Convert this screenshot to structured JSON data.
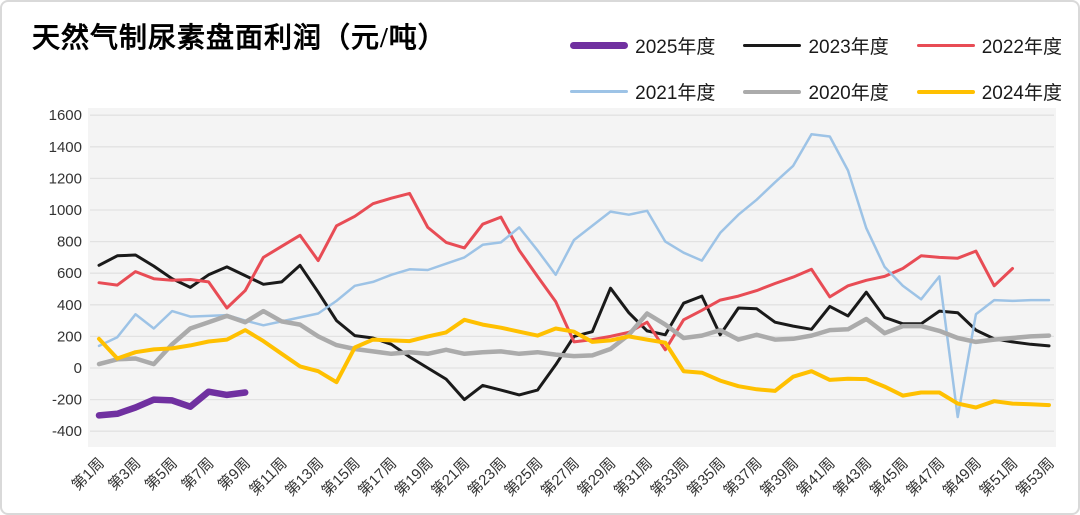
{
  "title": "天然气制尿素盘面利润（元/吨）",
  "legend": {
    "rows": [
      [
        {
          "label": "2025年度",
          "color": "#7030A0",
          "line_weight": 7
        },
        {
          "label": "2023年度",
          "color": "#1A1A1A",
          "line_weight": 3
        },
        {
          "label": "2022年度",
          "color": "#E84C55",
          "line_weight": 3
        }
      ],
      [
        {
          "label": "2021年度",
          "color": "#9DC3E6",
          "line_weight": 3
        },
        {
          "label": "2020年度",
          "color": "#ABABAB",
          "line_weight": 4
        },
        {
          "label": "2024年度",
          "color": "#FFC000",
          "line_weight": 4
        }
      ]
    ]
  },
  "chart_data": {
    "type": "line",
    "title": "天然气制尿素盘面利润（元/吨）",
    "x_axis": {
      "unit": "week",
      "range": [
        1,
        53
      ],
      "tick_step": 2,
      "tick_labels": [
        "第1周",
        "第3周",
        "第5周",
        "第7周",
        "第9周",
        "第11周",
        "第13周",
        "第15周",
        "第17周",
        "第19周",
        "第21周",
        "第23周",
        "第25周",
        "第27周",
        "第29周",
        "第31周",
        "第33周",
        "第35周",
        "第37周",
        "第39周",
        "第41周",
        "第43周",
        "第45周",
        "第47周",
        "第49周",
        "第51周",
        "第53周"
      ]
    },
    "y_axis": {
      "min": -400,
      "max": 1600,
      "step": 200,
      "ticks": [
        1600,
        1400,
        1200,
        1000,
        800,
        600,
        400,
        200,
        0,
        -200,
        -400
      ]
    },
    "grid": true,
    "plot_bg": "#F4F4F4",
    "grid_color": "#E2E2E2",
    "legend_position": "top-right",
    "series": [
      {
        "name": "2025年度",
        "color": "#7030A0",
        "width": 6.5,
        "start_week": 1,
        "values": [
          -300,
          -290,
          -250,
          -200,
          -205,
          -245,
          -150,
          -170,
          -155
        ]
      },
      {
        "name": "2023年度",
        "color": "#1A1A1A",
        "width": 3,
        "start_week": 1,
        "values": [
          650,
          710,
          715,
          645,
          565,
          510,
          590,
          640,
          585,
          530,
          545,
          650,
          480,
          300,
          205,
          190,
          150,
          70,
          0,
          -70,
          -200,
          -110,
          -140,
          -170,
          -140,
          20,
          200,
          230,
          505,
          350,
          235,
          210,
          410,
          455,
          210,
          380,
          375,
          290,
          265,
          245,
          390,
          330,
          480,
          320,
          280,
          280,
          360,
          350,
          240,
          185,
          165,
          150,
          140
        ]
      },
      {
        "name": "2022年度",
        "color": "#E84C55",
        "width": 3,
        "start_week": 1,
        "values": [
          540,
          525,
          610,
          565,
          555,
          560,
          545,
          380,
          490,
          700,
          770,
          840,
          680,
          900,
          960,
          1040,
          1075,
          1105,
          890,
          795,
          760,
          910,
          955,
          745,
          580,
          420,
          165,
          180,
          200,
          225,
          290,
          115,
          305,
          365,
          430,
          455,
          490,
          535,
          575,
          625,
          450,
          520,
          555,
          580,
          630,
          710,
          700,
          695,
          740,
          520,
          630
        ]
      },
      {
        "name": "2021年度",
        "color": "#9DC3E6",
        "width": 2.5,
        "start_week": 1,
        "values": [
          140,
          195,
          340,
          250,
          360,
          325,
          330,
          335,
          300,
          270,
          295,
          320,
          345,
          425,
          520,
          545,
          590,
          625,
          620,
          660,
          700,
          780,
          795,
          890,
          745,
          590,
          810,
          900,
          990,
          970,
          995,
          800,
          730,
          680,
          855,
          970,
          1065,
          1175,
          1280,
          1480,
          1465,
          1250,
          885,
          640,
          520,
          435,
          580,
          -310,
          340,
          430,
          425,
          430,
          430
        ]
      },
      {
        "name": "2020年度",
        "color": "#ABABAB",
        "width": 4.5,
        "start_week": 1,
        "values": [
          25,
          55,
          60,
          25,
          150,
          250,
          290,
          330,
          290,
          360,
          295,
          275,
          200,
          145,
          120,
          105,
          90,
          100,
          90,
          115,
          90,
          100,
          105,
          90,
          100,
          85,
          75,
          80,
          120,
          210,
          345,
          275,
          190,
          205,
          240,
          180,
          210,
          180,
          185,
          205,
          240,
          245,
          310,
          220,
          265,
          265,
          235,
          190,
          165,
          180,
          190,
          200,
          205
        ]
      },
      {
        "name": "2024年度",
        "color": "#FFC000",
        "width": 4,
        "start_week": 1,
        "values": [
          185,
          60,
          100,
          118,
          124,
          143,
          168,
          180,
          240,
          170,
          90,
          10,
          -20,
          -90,
          130,
          180,
          175,
          170,
          200,
          225,
          305,
          275,
          255,
          230,
          205,
          250,
          230,
          165,
          175,
          200,
          180,
          160,
          -20,
          -30,
          -80,
          -115,
          -135,
          -145,
          -55,
          -20,
          -75,
          -68,
          -70,
          -118,
          -175,
          -155,
          -155,
          -225,
          -250,
          -210,
          -225,
          -230,
          -235
        ]
      }
    ]
  }
}
